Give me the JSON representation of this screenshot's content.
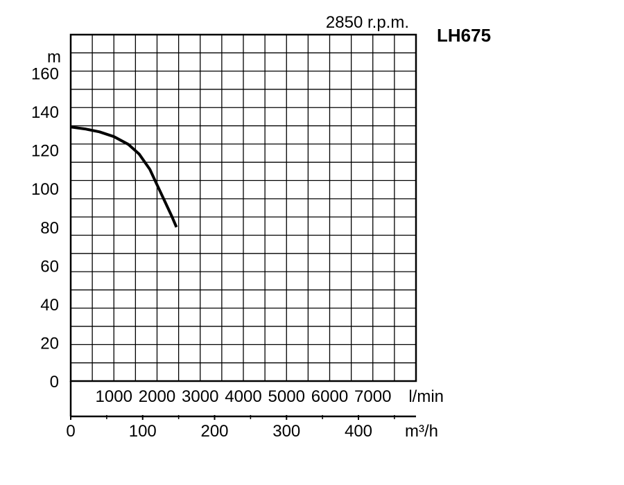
{
  "chart_data": {
    "type": "line",
    "title": "LH675",
    "subtitle": "2850 r.p.m.",
    "ylabel": "m",
    "xlabel": "m³/h",
    "x2label": "l/min",
    "xlim": [
      0,
      480
    ],
    "ylim": [
      0,
      180
    ],
    "y_ticks": [
      "0",
      "20",
      "40",
      "60",
      "80",
      "100",
      "120",
      "140",
      "160"
    ],
    "x_ticks": [
      "0",
      "100",
      "200",
      "300",
      "400"
    ],
    "x2_ticks": [
      "1000",
      "2000",
      "3000",
      "4000",
      "5000",
      "6000",
      "7000"
    ],
    "grid": true,
    "series": [
      {
        "x": [
          0,
          20,
          40,
          60,
          80,
          95,
          110,
          120,
          130,
          140,
          147
        ],
        "y": [
          132,
          131,
          129.5,
          127,
          123,
          118,
          110,
          102,
          94,
          86,
          80
        ]
      }
    ]
  },
  "colors": {
    "ink": "#000000",
    "background": "#ffffff"
  }
}
